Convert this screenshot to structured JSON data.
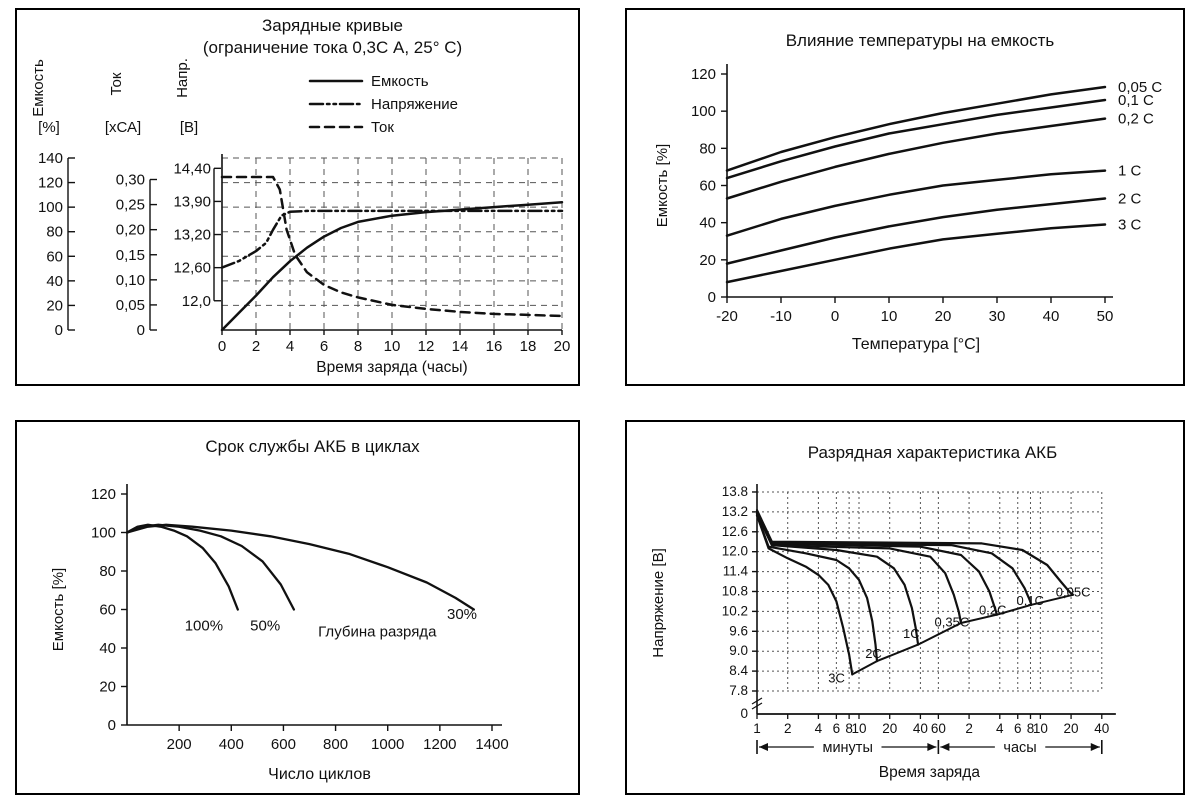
{
  "chart_data": [
    {
      "id": "charging",
      "type": "line",
      "title": "Зарядные кривые",
      "subtitle": "(ограничение тока 0,3С А, 25° С)",
      "xlabel": "Время заряда (часы)",
      "xlim": [
        0,
        20
      ],
      "x_ticks": [
        0,
        2,
        4,
        6,
        8,
        10,
        12,
        14,
        16,
        18,
        20
      ],
      "grid": "dashed",
      "axes": [
        {
          "name": "capacity",
          "title": "Емкость",
          "unit": "[%]",
          "ticks": [
            "0",
            "20",
            "40",
            "60",
            "80",
            "100",
            "120",
            "140"
          ],
          "values": [
            0,
            20,
            40,
            60,
            80,
            100,
            120,
            140
          ]
        },
        {
          "name": "current",
          "title": "Ток",
          "unit": "[хСА]",
          "ticks": [
            "0",
            "0,05",
            "0,10",
            "0,15",
            "0,20",
            "0,25",
            "0,30"
          ],
          "values": [
            0,
            0.05,
            0.1,
            0.15,
            0.2,
            0.25,
            0.3
          ]
        },
        {
          "name": "voltage",
          "title": "Напр.",
          "unit": "[В]",
          "ticks": [
            "12,0",
            "12,60",
            "13,20",
            "13,90",
            "14,40"
          ],
          "values": [
            12.0,
            12.6,
            13.2,
            13.9,
            14.4
          ]
        }
      ],
      "legend": [
        {
          "label": "Емкость",
          "dash": "solid"
        },
        {
          "label": "Напряжение",
          "dash": "dashdotdot"
        },
        {
          "label": "Ток",
          "dash": "dashed"
        }
      ],
      "series": [
        {
          "name": "Емкость",
          "axis": "capacity",
          "dash": "solid",
          "points": [
            [
              0,
              0
            ],
            [
              1,
              14
            ],
            [
              2,
              28
            ],
            [
              3,
              43
            ],
            [
              4,
              56
            ],
            [
              5,
              67
            ],
            [
              6,
              76
            ],
            [
              7,
              83
            ],
            [
              8,
              88
            ],
            [
              10,
              93
            ],
            [
              12,
              96
            ],
            [
              14,
              98
            ],
            [
              16,
              100
            ],
            [
              18,
              102
            ],
            [
              20,
              104
            ]
          ]
        },
        {
          "name": "Напряжение",
          "axis": "voltage",
          "dash": "dashdotdot",
          "points": [
            [
              0,
              12.6
            ],
            [
              1,
              12.72
            ],
            [
              2,
              12.9
            ],
            [
              2.6,
              13.05
            ],
            [
              3,
              13.3
            ],
            [
              3.5,
              13.6
            ],
            [
              4,
              13.68
            ],
            [
              5,
              13.7
            ],
            [
              20,
              13.7
            ]
          ]
        },
        {
          "name": "Ток",
          "axis": "current",
          "dash": "dashed",
          "points": [
            [
              0,
              0.305
            ],
            [
              3,
              0.305
            ],
            [
              3.4,
              0.28
            ],
            [
              3.8,
              0.2
            ],
            [
              4.3,
              0.15
            ],
            [
              5,
              0.115
            ],
            [
              6,
              0.09
            ],
            [
              7,
              0.075
            ],
            [
              8,
              0.065
            ],
            [
              10,
              0.05
            ],
            [
              12,
              0.042
            ],
            [
              14,
              0.036
            ],
            [
              16,
              0.032
            ],
            [
              18,
              0.03
            ],
            [
              20,
              0.028
            ]
          ]
        }
      ]
    },
    {
      "id": "temperature",
      "type": "line",
      "title": "Влияние температуры на емкость",
      "xlabel": "Температура [°С]",
      "ylabel": "Емкость [%]",
      "xlim": [
        -20,
        50
      ],
      "ylim": [
        0,
        120
      ],
      "x_ticks": [
        -20,
        -10,
        0,
        10,
        20,
        30,
        40,
        50
      ],
      "y_ticks": [
        0,
        20,
        40,
        60,
        80,
        100,
        120
      ],
      "grid": "off",
      "legend_position": "right-of-curves",
      "x": [
        -20,
        -10,
        0,
        10,
        20,
        30,
        40,
        50
      ],
      "series": [
        {
          "name": "0,05 С",
          "values": [
            68,
            78,
            86,
            93,
            99,
            104,
            109,
            113
          ]
        },
        {
          "name": "0,1 С",
          "values": [
            64,
            73,
            81,
            88,
            93,
            98,
            102,
            106
          ]
        },
        {
          "name": "0,2 С",
          "values": [
            53,
            62,
            70,
            77,
            83,
            88,
            92,
            96
          ]
        },
        {
          "name": "1 С",
          "values": [
            33,
            42,
            49,
            55,
            60,
            63,
            66,
            68
          ]
        },
        {
          "name": "2 С",
          "values": [
            18,
            25,
            32,
            38,
            43,
            47,
            50,
            53
          ]
        },
        {
          "name": "3 С",
          "values": [
            8,
            14,
            20,
            26,
            31,
            34,
            37,
            39
          ]
        }
      ]
    },
    {
      "id": "cycles",
      "type": "line",
      "title": "Срок службы АКБ в циклах",
      "xlabel": "Число циклов",
      "ylabel": "Емкость [%]",
      "xlim": [
        0,
        1400
      ],
      "ylim": [
        0,
        120
      ],
      "x_ticks": [
        200,
        400,
        600,
        800,
        1000,
        1200,
        1400
      ],
      "y_ticks": [
        0,
        20,
        40,
        60,
        80,
        100,
        120
      ],
      "grid": "off",
      "annotation": "Глубина разряда",
      "annotation_at": [
        960,
        46
      ],
      "series": [
        {
          "name": "100%",
          "label_at": [
            295,
            49
          ],
          "points": [
            [
              0,
              100
            ],
            [
              40,
              103
            ],
            [
              80,
              104
            ],
            [
              130,
              103
            ],
            [
              180,
              101
            ],
            [
              230,
              98
            ],
            [
              290,
              92
            ],
            [
              340,
              84
            ],
            [
              390,
              72
            ],
            [
              425,
              60
            ]
          ]
        },
        {
          "name": "50%",
          "label_at": [
            530,
            49
          ],
          "points": [
            [
              0,
              100
            ],
            [
              60,
              103
            ],
            [
              120,
              104
            ],
            [
              200,
              103
            ],
            [
              280,
              101
            ],
            [
              360,
              98
            ],
            [
              440,
              93
            ],
            [
              520,
              85
            ],
            [
              590,
              73
            ],
            [
              640,
              60
            ]
          ]
        },
        {
          "name": "30%",
          "label_at": [
            1285,
            55
          ],
          "points": [
            [
              0,
              100
            ],
            [
              80,
              103
            ],
            [
              150,
              104
            ],
            [
              250,
              103
            ],
            [
              400,
              101
            ],
            [
              550,
              98
            ],
            [
              700,
              94
            ],
            [
              850,
              89
            ],
            [
              1000,
              82
            ],
            [
              1150,
              74
            ],
            [
              1260,
              66
            ],
            [
              1330,
              60
            ]
          ]
        }
      ]
    },
    {
      "id": "discharge",
      "type": "line",
      "title": "Разрядная характеристика АКБ",
      "xlabel": "Время заряда",
      "ylabel": "Напряжение [В]",
      "x_scale": "log",
      "grid": "dotted",
      "y_ticks": [
        "13.8",
        "13.2",
        "12.6",
        "12.0",
        "11.4",
        "10.8",
        "10.2",
        "9.6",
        "9.0",
        "8.4",
        "7.8"
      ],
      "y_values": [
        13.8,
        13.2,
        12.6,
        12.0,
        11.4,
        10.8,
        10.2,
        9.6,
        9.0,
        8.4,
        7.8
      ],
      "y_zero_label": "0",
      "minute_ticks": [
        1,
        2,
        4,
        6,
        8,
        10,
        20,
        40,
        60
      ],
      "hour_ticks": [
        2,
        4,
        6,
        8,
        10,
        20,
        40
      ],
      "range_labels": {
        "minutes": "минуты",
        "hours": "часы"
      },
      "series": [
        {
          "name": "3С",
          "label_at": [
            5.0,
            8.05
          ],
          "points": [
            [
              1,
              13.1
            ],
            [
              1.3,
              12.1
            ],
            [
              2,
              11.8
            ],
            [
              3,
              11.55
            ],
            [
              4,
              11.3
            ],
            [
              5,
              11.0
            ],
            [
              6,
              10.5
            ],
            [
              7,
              9.7
            ],
            [
              8,
              8.9
            ],
            [
              8.6,
              8.3
            ]
          ]
        },
        {
          "name": "2С",
          "label_at": [
            11.5,
            8.8
          ],
          "points": [
            [
              1,
              13.1
            ],
            [
              1.3,
              12.15
            ],
            [
              3,
              11.95
            ],
            [
              6,
              11.75
            ],
            [
              8,
              11.5
            ],
            [
              10,
              11.15
            ],
            [
              12,
              10.6
            ],
            [
              13.5,
              9.9
            ],
            [
              14.5,
              9.2
            ],
            [
              15,
              8.7
            ]
          ]
        },
        {
          "name": "1С",
          "label_at": [
            27,
            9.4
          ],
          "points": [
            [
              1,
              13.15
            ],
            [
              1.4,
              12.2
            ],
            [
              6,
              12.05
            ],
            [
              15,
              11.85
            ],
            [
              22,
              11.5
            ],
            [
              28,
              11.0
            ],
            [
              33,
              10.3
            ],
            [
              36,
              9.7
            ],
            [
              38,
              9.2
            ]
          ]
        },
        {
          "name": "0,35С",
          "label_at": [
            55,
            9.75
          ],
          "points": [
            [
              1,
              13.15
            ],
            [
              1.4,
              12.2
            ],
            [
              20,
              12.1
            ],
            [
              50,
              11.85
            ],
            [
              70,
              11.35
            ],
            [
              85,
              10.7
            ],
            [
              95,
              10.2
            ],
            [
              100,
              9.85
            ]
          ]
        },
        {
          "name": "0,2С",
          "label_at": [
            150,
            10.1
          ],
          "points": [
            [
              1,
              13.2
            ],
            [
              1.4,
              12.25
            ],
            [
              40,
              12.15
            ],
            [
              100,
              11.9
            ],
            [
              150,
              11.4
            ],
            [
              190,
              10.8
            ],
            [
              215,
              10.3
            ],
            [
              225,
              10.1
            ]
          ]
        },
        {
          "name": "0,1С",
          "label_at": [
            350,
            10.4
          ],
          "points": [
            [
              1,
              13.2
            ],
            [
              1.4,
              12.25
            ],
            [
              80,
              12.2
            ],
            [
              200,
              11.95
            ],
            [
              320,
              11.5
            ],
            [
              420,
              10.9
            ],
            [
              470,
              10.55
            ],
            [
              490,
              10.4
            ]
          ]
        },
        {
          "name": "0,05С",
          "label_at": [
            850,
            10.65
          ],
          "points": [
            [
              1,
              13.25
            ],
            [
              1.4,
              12.3
            ],
            [
              160,
              12.25
            ],
            [
              400,
              12.05
            ],
            [
              700,
              11.6
            ],
            [
              950,
              11.1
            ],
            [
              1150,
              10.8
            ],
            [
              1250,
              10.7
            ]
          ]
        }
      ],
      "envelope": [
        [
          8.6,
          8.3
        ],
        [
          15,
          8.7
        ],
        [
          38,
          9.2
        ],
        [
          100,
          9.85
        ],
        [
          225,
          10.1
        ],
        [
          490,
          10.4
        ],
        [
          1250,
          10.7
        ]
      ]
    }
  ]
}
